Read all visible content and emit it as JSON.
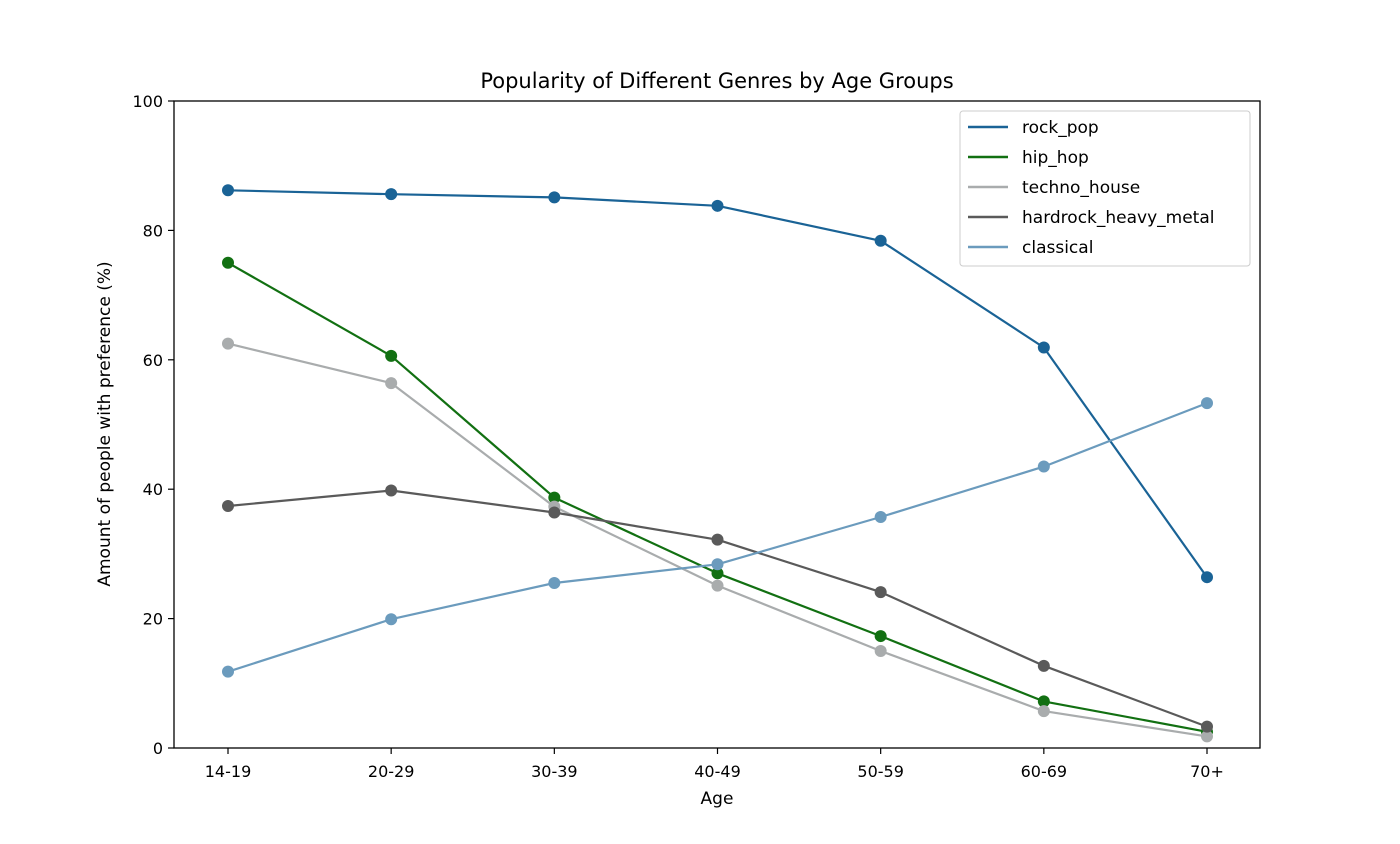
{
  "chart_data": {
    "type": "line",
    "title": "Popularity of Different Genres by Age Groups",
    "xlabel": "Age",
    "ylabel": "Amount of people with preference (%)",
    "categories": [
      "14-19",
      "20-29",
      "30-39",
      "40-49",
      "50-59",
      "60-69",
      "70+"
    ],
    "ylim": [
      0,
      100
    ],
    "yticks": [
      0,
      20,
      40,
      60,
      80,
      100
    ],
    "grid": false,
    "legend_position": "top-right",
    "series": [
      {
        "name": "rock_pop",
        "color": "#1a6396",
        "values": [
          86.2,
          85.6,
          85.1,
          83.8,
          78.4,
          61.9,
          26.4
        ]
      },
      {
        "name": "hip_hop",
        "color": "#127012",
        "values": [
          75.0,
          60.6,
          38.7,
          27.0,
          17.3,
          7.2,
          2.5
        ]
      },
      {
        "name": "techno_house",
        "color": "#a9acad",
        "values": [
          62.5,
          56.4,
          37.3,
          25.1,
          15.0,
          5.7,
          1.8
        ]
      },
      {
        "name": "hardrock_heavy_metal",
        "color": "#5a5a5a",
        "values": [
          37.4,
          39.8,
          36.4,
          32.2,
          24.1,
          12.7,
          3.3
        ]
      },
      {
        "name": "classical",
        "color": "#6b9bbd",
        "values": [
          11.8,
          19.9,
          25.5,
          28.4,
          35.7,
          43.5,
          53.3
        ]
      }
    ]
  }
}
